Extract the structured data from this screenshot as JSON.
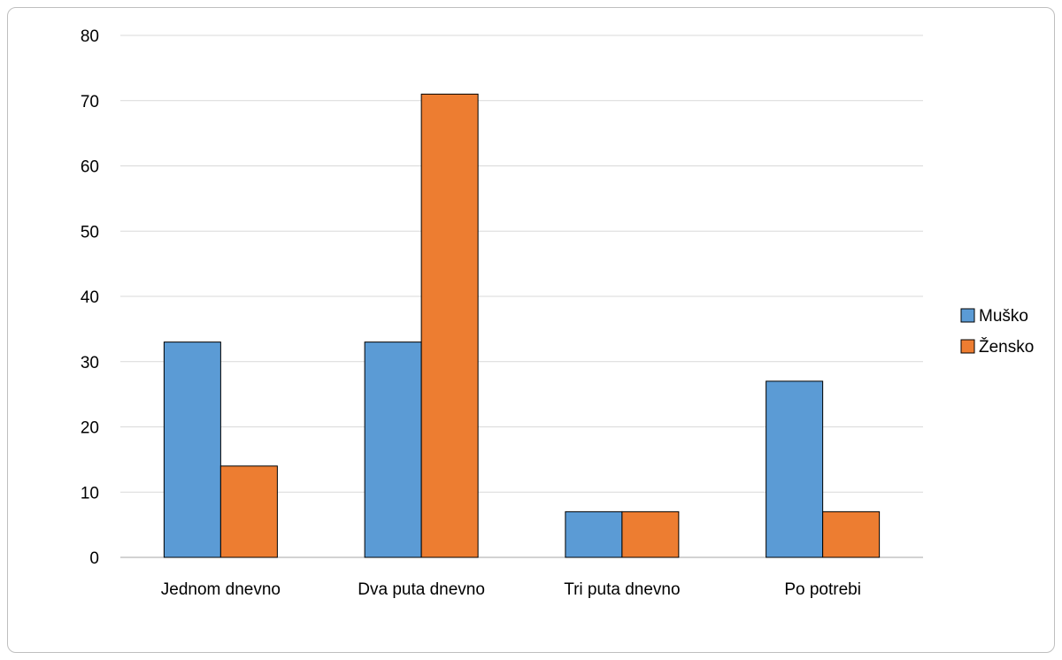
{
  "chart_data": {
    "type": "bar",
    "categories": [
      "Jednom dnevno",
      "Dva puta dnevno",
      "Tri puta dnevno",
      "Po potrebi"
    ],
    "series": [
      {
        "name": "Muško",
        "values": [
          33,
          33,
          7,
          27
        ],
        "color": "#5b9bd5"
      },
      {
        "name": "Žensko",
        "values": [
          14,
          71,
          7,
          7
        ],
        "color": "#ed7d31"
      }
    ],
    "ylim": [
      0,
      80
    ],
    "yticks": [
      0,
      10,
      20,
      30,
      40,
      50,
      60,
      70,
      80
    ],
    "grid": true,
    "legend_position": "right",
    "title": "",
    "xlabel": "",
    "ylabel": ""
  }
}
